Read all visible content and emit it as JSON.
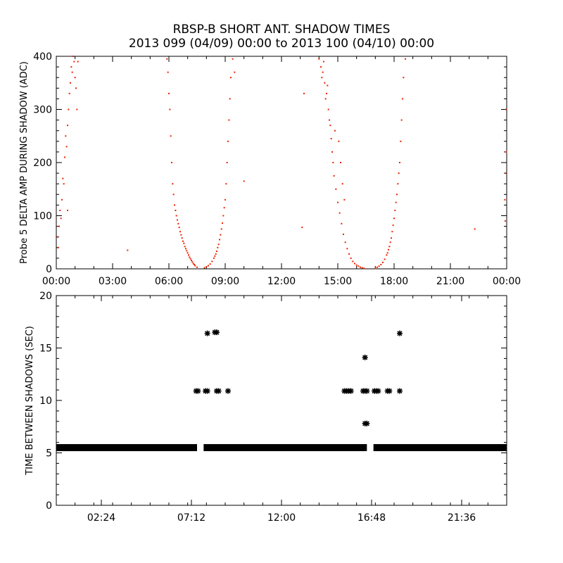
{
  "title": "RBSP-B SHORT ANT. SHADOW TIMES",
  "subtitle": "2013 099 (04/09) 00:00 to 2013 100 (04/10) 00:00",
  "colors": {
    "top_points": "#ee2200",
    "bottom_points": "#000000",
    "axes": "#000000"
  },
  "chart_data": [
    {
      "type": "scatter",
      "ylabel": "Probe 5 DELTA AMP DURING SHADOW (ADC)",
      "xlabel": "",
      "xlim_hours": [
        0,
        24
      ],
      "ylim": [
        0,
        400
      ],
      "x_ticks": [
        "00:00",
        "03:00",
        "06:00",
        "09:00",
        "12:00",
        "15:00",
        "18:00",
        "21:00",
        "00:00"
      ],
      "y_ticks": [
        "0",
        "100",
        "200",
        "300",
        "400"
      ],
      "marker": "dot",
      "series": [
        {
          "points_hours_value": [
            [
              0.05,
              60
            ],
            [
              0.1,
              40
            ],
            [
              0.15,
              80
            ],
            [
              0.2,
              110
            ],
            [
              0.3,
              130
            ],
            [
              0.35,
              170
            ],
            [
              0.4,
              160
            ],
            [
              0.45,
              210
            ],
            [
              0.5,
              250
            ],
            [
              0.55,
              230
            ],
            [
              0.6,
              270
            ],
            [
              0.65,
              300
            ],
            [
              0.7,
              330
            ],
            [
              0.75,
              350
            ],
            [
              0.8,
              380
            ],
            [
              0.85,
              370
            ],
            [
              0.9,
              400
            ],
            [
              0.95,
              390
            ],
            [
              1.0,
              360
            ],
            [
              1.05,
              340
            ],
            [
              1.1,
              300
            ],
            [
              1.15,
              390
            ],
            [
              0.25,
              95
            ],
            [
              0.6,
              110
            ],
            [
              3.8,
              35
            ],
            [
              5.9,
              395
            ],
            [
              5.95,
              370
            ],
            [
              6.0,
              330
            ],
            [
              6.05,
              300
            ],
            [
              6.1,
              250
            ],
            [
              6.15,
              200
            ],
            [
              6.2,
              160
            ],
            [
              6.25,
              140
            ],
            [
              6.3,
              120
            ],
            [
              6.4,
              100
            ],
            [
              6.5,
              85
            ],
            [
              6.6,
              70
            ],
            [
              6.7,
              58
            ],
            [
              6.8,
              48
            ],
            [
              6.9,
              38
            ],
            [
              7.0,
              30
            ],
            [
              7.1,
              22
            ],
            [
              7.2,
              16
            ],
            [
              7.3,
              10
            ],
            [
              7.4,
              6
            ],
            [
              7.5,
              3
            ],
            [
              6.35,
              110
            ],
            [
              6.45,
              92
            ],
            [
              6.55,
              78
            ],
            [
              6.65,
              64
            ],
            [
              6.75,
              52
            ],
            [
              6.85,
              42
            ],
            [
              6.95,
              34
            ],
            [
              7.05,
              26
            ],
            [
              7.15,
              19
            ],
            [
              7.25,
              13
            ],
            [
              7.35,
              8
            ],
            [
              7.9,
              2
            ],
            [
              8.0,
              4
            ],
            [
              8.1,
              6
            ],
            [
              8.2,
              9
            ],
            [
              8.3,
              14
            ],
            [
              8.4,
              20
            ],
            [
              8.5,
              28
            ],
            [
              8.6,
              40
            ],
            [
              8.7,
              55
            ],
            [
              8.8,
              75
            ],
            [
              8.9,
              100
            ],
            [
              9.0,
              130
            ],
            [
              9.05,
              160
            ],
            [
              9.1,
              200
            ],
            [
              9.15,
              240
            ],
            [
              9.2,
              280
            ],
            [
              9.25,
              320
            ],
            [
              9.3,
              360
            ],
            [
              9.4,
              395
            ],
            [
              8.45,
              24
            ],
            [
              8.55,
              33
            ],
            [
              8.65,
              46
            ],
            [
              8.75,
              64
            ],
            [
              8.85,
              86
            ],
            [
              8.95,
              115
            ],
            [
              9.5,
              370
            ],
            [
              10.0,
              165
            ],
            [
              13.1,
              78
            ],
            [
              13.2,
              330
            ],
            [
              14.0,
              395
            ],
            [
              14.1,
              380
            ],
            [
              14.2,
              370
            ],
            [
              14.3,
              350
            ],
            [
              14.4,
              330
            ],
            [
              14.5,
              300
            ],
            [
              14.6,
              270
            ],
            [
              14.65,
              245
            ],
            [
              14.7,
              220
            ],
            [
              14.75,
              200
            ],
            [
              14.8,
              175
            ],
            [
              14.9,
              150
            ],
            [
              15.0,
              125
            ],
            [
              15.1,
              105
            ],
            [
              15.2,
              85
            ],
            [
              15.3,
              65
            ],
            [
              15.4,
              50
            ],
            [
              15.5,
              38
            ],
            [
              15.6,
              28
            ],
            [
              15.7,
              20
            ],
            [
              15.8,
              14
            ],
            [
              15.9,
              10
            ],
            [
              16.0,
              7
            ],
            [
              16.1,
              5
            ],
            [
              16.2,
              3
            ],
            [
              16.3,
              2
            ],
            [
              16.4,
              1
            ],
            [
              14.15,
              360
            ],
            [
              14.35,
              320
            ],
            [
              14.55,
              280
            ],
            [
              14.85,
              260
            ],
            [
              15.05,
              240
            ],
            [
              15.15,
              200
            ],
            [
              15.25,
              160
            ],
            [
              15.35,
              130
            ],
            [
              14.25,
              390
            ],
            [
              14.45,
              345
            ],
            [
              17.0,
              1
            ],
            [
              17.1,
              3
            ],
            [
              17.2,
              5
            ],
            [
              17.3,
              8
            ],
            [
              17.4,
              12
            ],
            [
              17.5,
              18
            ],
            [
              17.6,
              26
            ],
            [
              17.7,
              36
            ],
            [
              17.8,
              50
            ],
            [
              17.9,
              70
            ],
            [
              18.0,
              95
            ],
            [
              18.1,
              125
            ],
            [
              18.2,
              160
            ],
            [
              18.3,
              200
            ],
            [
              18.35,
              240
            ],
            [
              18.4,
              280
            ],
            [
              18.45,
              320
            ],
            [
              18.5,
              360
            ],
            [
              18.6,
              395
            ],
            [
              17.65,
              30
            ],
            [
              17.75,
              42
            ],
            [
              17.85,
              58
            ],
            [
              17.95,
              82
            ],
            [
              18.05,
              110
            ],
            [
              18.15,
              140
            ],
            [
              18.25,
              180
            ],
            [
              22.3,
              75
            ],
            [
              23.9,
              130
            ],
            [
              23.95,
              180
            ],
            [
              23.98,
              220
            ],
            [
              23.92,
              90
            ],
            [
              23.96,
              300
            ]
          ]
        }
      ]
    },
    {
      "type": "scatter",
      "ylabel": "TIME BETWEEN SHADOWS (SEC)",
      "xlabel": "",
      "xlim_hours": [
        0,
        24
      ],
      "ylim": [
        0,
        20
      ],
      "x_ticks": [
        "02:24",
        "07:12",
        "12:00",
        "16:48",
        "21:36"
      ],
      "y_ticks": [
        "0",
        "5",
        "10",
        "15",
        "20"
      ],
      "marker": "asterisk",
      "baseline": {
        "value": 5.5,
        "from_hour": 0,
        "to_hour": 24,
        "gaps_hours": [
          [
            7.5,
            7.85
          ],
          [
            16.55,
            16.9
          ]
        ]
      },
      "series": [
        {
          "points_hours_value": [
            [
              7.45,
              10.9
            ],
            [
              7.55,
              10.9
            ],
            [
              7.95,
              10.9
            ],
            [
              8.05,
              10.9
            ],
            [
              8.05,
              16.4
            ],
            [
              8.45,
              16.5
            ],
            [
              8.55,
              16.5
            ],
            [
              8.55,
              10.9
            ],
            [
              8.65,
              10.9
            ],
            [
              9.15,
              10.9
            ],
            [
              15.35,
              10.9
            ],
            [
              15.45,
              10.9
            ],
            [
              15.55,
              10.9
            ],
            [
              15.7,
              10.9
            ],
            [
              16.35,
              10.9
            ],
            [
              16.45,
              10.9
            ],
            [
              16.55,
              10.9
            ],
            [
              16.45,
              14.1
            ],
            [
              16.45,
              7.8
            ],
            [
              16.55,
              7.8
            ],
            [
              16.95,
              10.9
            ],
            [
              17.05,
              10.9
            ],
            [
              17.15,
              10.9
            ],
            [
              17.65,
              10.9
            ],
            [
              17.75,
              10.9
            ],
            [
              18.3,
              16.4
            ],
            [
              18.3,
              10.9
            ]
          ]
        }
      ]
    }
  ]
}
